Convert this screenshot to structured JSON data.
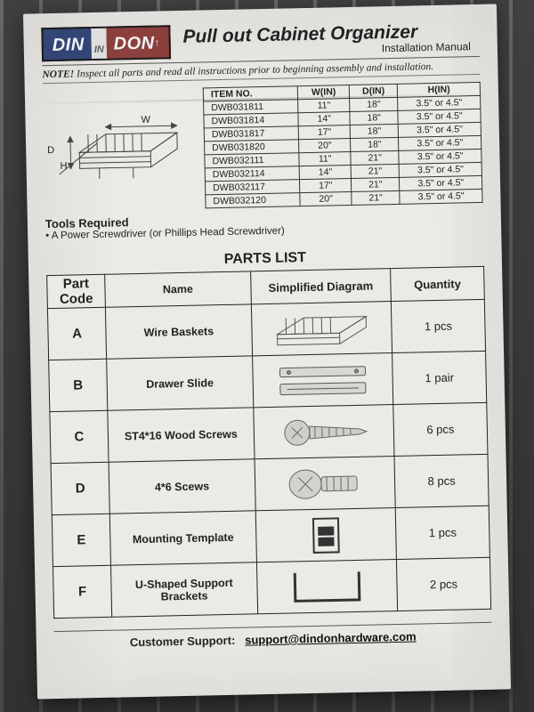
{
  "logo": {
    "part1": "DIN",
    "mid": "IN",
    "part2": "DON",
    "accent_small": "↑"
  },
  "colors": {
    "logo_blue": "#1a3fa0",
    "logo_red": "#c22b25",
    "paper": "#eceae6",
    "ink": "#222222"
  },
  "title": {
    "main": "Pull out Cabinet Organizer",
    "sub": "Installation Manual"
  },
  "note": {
    "label": "NOTE!",
    "text": " Inspect all parts and read all instructions prior to beginning assembly and installation."
  },
  "spec": {
    "headers": [
      "ITEM NO.",
      "W(IN)",
      "D(IN)",
      "H(IN)"
    ],
    "rows": [
      [
        "DWB031811",
        "11\"",
        "18\"",
        "3.5\" or 4.5\""
      ],
      [
        "DWB031814",
        "14\"",
        "18\"",
        "3.5\" or 4.5\""
      ],
      [
        "DWB031817",
        "17\"",
        "18\"",
        "3.5\" or 4.5\""
      ],
      [
        "DWB031820",
        "20\"",
        "18\"",
        "3.5\" or 4.5\""
      ],
      [
        "DWB032111",
        "11\"",
        "21\"",
        "3.5\" or 4.5\""
      ],
      [
        "DWB032114",
        "14\"",
        "21\"",
        "3.5\" or 4.5\""
      ],
      [
        "DWB032117",
        "17\"",
        "21\"",
        "3.5\" or 4.5\""
      ],
      [
        "DWB032120",
        "20\"",
        "21\"",
        "3.5\" or 4.5\""
      ]
    ]
  },
  "diag_labels": {
    "W": "W",
    "D": "D",
    "H": "H"
  },
  "tools": {
    "head": "Tools Required",
    "item": "• A Power Screwdriver (or Phillips Head Screwdriver)"
  },
  "parts": {
    "title": "PARTS LIST",
    "headers": [
      "Part Code",
      "Name",
      "Simplified Diagram",
      "Quantity"
    ],
    "rows": [
      {
        "code": "A",
        "name": "Wire Baskets",
        "qty": "1 pcs"
      },
      {
        "code": "B",
        "name": "Drawer Slide",
        "qty": "1 pair"
      },
      {
        "code": "C",
        "name": "ST4*16 Wood Screws",
        "qty": "6 pcs"
      },
      {
        "code": "D",
        "name": "4*6 Scews",
        "qty": "8 pcs"
      },
      {
        "code": "E",
        "name": "Mounting Template",
        "qty": "1 pcs"
      },
      {
        "code": "F",
        "name": "U-Shaped Support Brackets",
        "qty": "2 pcs"
      }
    ]
  },
  "footer": {
    "label": "Customer Support:",
    "email": "support@dindonhardware.com"
  }
}
